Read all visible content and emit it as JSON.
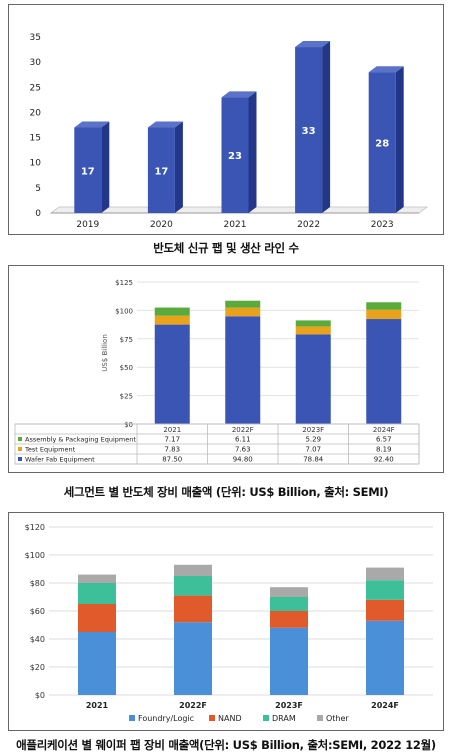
{
  "captions": {
    "chart1": "반도체 신규 팹 및 생산 라인 수",
    "chart2": "세그먼트 별 반도체 장비 매출액 (단위: US$ Billion, 출처: SEMI)",
    "chart3": "애플리케이션 별 웨이퍼 팹 장비 매출액(단위: US$ Billion, 출처:SEMI, 2022 12월)"
  },
  "chart_data": [
    {
      "type": "bar",
      "title": "",
      "categories": [
        "2019",
        "2020",
        "2021",
        "2022",
        "2023"
      ],
      "values": [
        17,
        17,
        23,
        33,
        28
      ],
      "data_labels": [
        "17",
        "17",
        "23",
        "33",
        "28"
      ],
      "ylim": [
        0,
        35
      ],
      "yticks": [
        "0",
        "5",
        "10",
        "15",
        "20",
        "25",
        "30",
        "35"
      ],
      "grid": false,
      "style": "3d-column",
      "colors": {
        "bar": "#3a55b4",
        "bar_side": "#23378a",
        "bar_top": "#5a72c8"
      }
    },
    {
      "type": "bar",
      "stacked": true,
      "title": "",
      "ylabel": "US$ Billion",
      "categories": [
        "2021",
        "2022F",
        "2023F",
        "2024F"
      ],
      "ylim": [
        0,
        125
      ],
      "yticks": [
        "$0",
        "$25",
        "$50",
        "$75",
        "$100",
        "$125"
      ],
      "grid": true,
      "legend": "table-left",
      "series": [
        {
          "name": "Wafer Fab Equipment",
          "values": [
            87.5,
            94.8,
            78.84,
            92.4
          ],
          "labels": [
            "87.50",
            "94.80",
            "78.84",
            "92.40"
          ],
          "color": "#3a55b4"
        },
        {
          "name": "Test Equipment",
          "values": [
            7.83,
            7.63,
            7.07,
            8.19
          ],
          "labels": [
            "7.83",
            "7.63",
            "7.07",
            "8.19"
          ],
          "color": "#e8a21c"
        },
        {
          "name": "Assembly & Packaging Equipment",
          "values": [
            7.17,
            6.11,
            5.29,
            6.57
          ],
          "labels": [
            "7.17",
            "6.11",
            "5.29",
            "6.57"
          ],
          "color": "#5aab3c"
        }
      ]
    },
    {
      "type": "bar",
      "stacked": true,
      "title": "",
      "categories": [
        "2021",
        "2022F",
        "2023F",
        "2024F"
      ],
      "ylim": [
        0,
        120
      ],
      "yticks": [
        "$0",
        "$20",
        "$40",
        "$60",
        "$80",
        "$100",
        "$120"
      ],
      "grid": true,
      "legend": "bottom",
      "series": [
        {
          "name": "Foundry/Logic",
          "values": [
            45,
            52,
            48,
            53
          ],
          "color": "#4a90d9"
        },
        {
          "name": "NAND",
          "values": [
            20,
            19,
            12,
            15
          ],
          "color": "#e05a2b"
        },
        {
          "name": "DRAM",
          "values": [
            15,
            14,
            10,
            14
          ],
          "color": "#3dbf9a"
        },
        {
          "name": "Other",
          "values": [
            6,
            8,
            7,
            9
          ],
          "color": "#a9a9a9"
        }
      ]
    }
  ]
}
